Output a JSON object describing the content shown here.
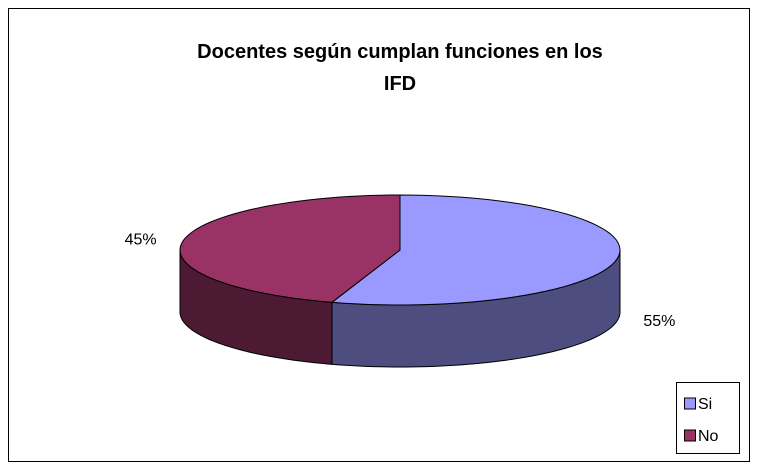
{
  "chart_data": {
    "type": "pie3d",
    "title": "Docentes según cumplan funciones en los IFD",
    "categories": [
      "Si",
      "No"
    ],
    "values": [
      55,
      45
    ],
    "value_labels": [
      "55%",
      "45%"
    ],
    "colors": [
      "#9999ff",
      "#993366"
    ],
    "legend": "right"
  }
}
